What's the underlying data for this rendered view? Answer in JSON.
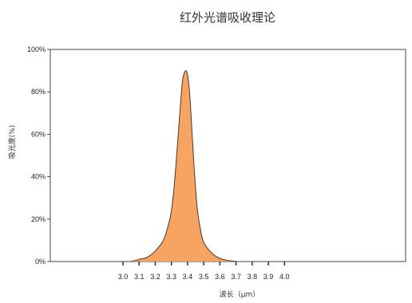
{
  "chart_data": {
    "type": "area",
    "title": "红外光谱吸收理论",
    "xlabel": "波长（μm）",
    "ylabel": "吸光度(%)",
    "x_ticks": [
      "3.0",
      "3.1",
      "3.2",
      "3.3",
      "3.4",
      "3.5",
      "3.6",
      "3.7",
      "3.8",
      "3.9",
      "4.0"
    ],
    "y_ticks": [
      "0%",
      "20%",
      "40%",
      "60%",
      "80%",
      "100%"
    ],
    "xlim": [
      2.55,
      4.75
    ],
    "ylim": [
      0,
      100
    ],
    "grid": false,
    "fill_color": "#F7A462",
    "line_color": "#4a3a2a",
    "series": [
      {
        "x": [
          3.05,
          3.1,
          3.15,
          3.2,
          3.25,
          3.28,
          3.3,
          3.32,
          3.34,
          3.36,
          3.37,
          3.38,
          3.39,
          3.4,
          3.41,
          3.42,
          3.44,
          3.46,
          3.48,
          3.5,
          3.55,
          3.6,
          3.65,
          3.7
        ],
        "y": [
          0,
          1,
          2,
          5,
          10,
          17,
          24,
          38,
          58,
          78,
          86,
          89,
          90,
          88,
          82,
          71,
          45,
          25,
          15,
          9,
          4,
          1.5,
          0.5,
          0
        ]
      }
    ]
  }
}
